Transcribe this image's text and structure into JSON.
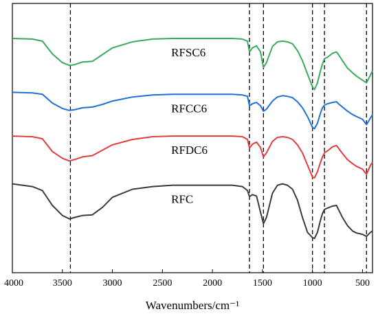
{
  "chart_data": {
    "type": "line",
    "xlabel": "Wavenumbers/cm⁻¹",
    "ylabel": "",
    "xlim": [
      4000,
      400
    ],
    "x_reversed": true,
    "y_ticks_shown": false,
    "grid": false,
    "legend": "none",
    "x_ticks": [
      4000,
      3500,
      3000,
      2500,
      2000,
      1500,
      1000,
      500
    ],
    "reference_lines_x": [
      3420,
      1630,
      1490,
      1000,
      880,
      460
    ],
    "series": [
      {
        "name": "RFSC6",
        "color": "#3aaa5c",
        "x": [
          4000,
          3800,
          3700,
          3600,
          3500,
          3430,
          3380,
          3300,
          3200,
          3100,
          3000,
          2800,
          2600,
          2400,
          2200,
          2000,
          1800,
          1700,
          1650,
          1630,
          1600,
          1560,
          1520,
          1490,
          1460,
          1400,
          1350,
          1300,
          1250,
          1200,
          1150,
          1100,
          1050,
          1000,
          980,
          950,
          920,
          900,
          880,
          850,
          800,
          760,
          740,
          700,
          650,
          600,
          560,
          500,
          460,
          420,
          400
        ],
        "y": [
          52,
          53,
          56,
          75,
          88,
          92,
          91,
          87,
          86,
          76,
          66,
          57,
          53,
          52,
          52,
          52,
          52,
          53,
          56,
          72,
          66,
          63,
          72,
          95,
          88,
          64,
          57,
          56,
          57,
          60,
          70,
          85,
          105,
          124,
          128,
          118,
          100,
          90,
          82,
          80,
          74,
          72,
          76,
          85,
          96,
          103,
          108,
          114,
          118,
          106,
          100
        ]
      },
      {
        "name": "RFCC6",
        "color": "#1f6fd6",
        "x": [
          4000,
          3800,
          3700,
          3600,
          3500,
          3430,
          3380,
          3300,
          3200,
          3100,
          3000,
          2800,
          2600,
          2400,
          2200,
          2000,
          1800,
          1700,
          1650,
          1630,
          1600,
          1560,
          1520,
          1490,
          1460,
          1400,
          1350,
          1300,
          1250,
          1200,
          1150,
          1100,
          1050,
          1000,
          980,
          950,
          920,
          900,
          880,
          850,
          800,
          760,
          740,
          700,
          650,
          600,
          560,
          500,
          460,
          420,
          400
        ],
        "y": [
          132,
          133,
          135,
          148,
          156,
          159,
          158,
          155,
          154,
          150,
          145,
          139,
          136,
          135,
          135,
          135,
          135,
          136,
          138,
          152,
          149,
          147,
          152,
          160,
          157,
          145,
          139,
          137,
          138,
          140,
          146,
          155,
          168,
          184,
          186,
          178,
          163,
          155,
          151,
          149,
          147,
          146,
          149,
          154,
          160,
          165,
          168,
          172,
          180,
          170,
          165
        ]
      },
      {
        "name": "RFDC6",
        "color": "#e03c3c",
        "x": [
          4000,
          3800,
          3700,
          3600,
          3500,
          3430,
          3380,
          3300,
          3200,
          3100,
          3000,
          2800,
          2600,
          2400,
          2200,
          2000,
          1800,
          1700,
          1650,
          1630,
          1600,
          1560,
          1520,
          1490,
          1460,
          1400,
          1350,
          1300,
          1250,
          1200,
          1150,
          1100,
          1050,
          1000,
          980,
          950,
          920,
          900,
          880,
          850,
          800,
          760,
          740,
          700,
          650,
          600,
          560,
          500,
          460,
          420,
          400
        ],
        "y": [
          197,
          198,
          201,
          220,
          230,
          234,
          232,
          228,
          226,
          218,
          210,
          202,
          198,
          197,
          197,
          197,
          197,
          198,
          202,
          215,
          209,
          206,
          214,
          228,
          222,
          205,
          199,
          198,
          199,
          202,
          210,
          222,
          240,
          258,
          259,
          250,
          236,
          228,
          222,
          219,
          213,
          211,
          215,
          223,
          232,
          238,
          242,
          246,
          254,
          240,
          236
        ]
      },
      {
        "name": "RFC",
        "color": "#3a3a3a",
        "x": [
          4000,
          3800,
          3700,
          3600,
          3500,
          3430,
          3380,
          3300,
          3200,
          3100,
          3000,
          2800,
          2600,
          2400,
          2200,
          2000,
          1800,
          1700,
          1650,
          1630,
          1600,
          1560,
          1520,
          1490,
          1460,
          1400,
          1350,
          1300,
          1250,
          1200,
          1150,
          1100,
          1050,
          1000,
          980,
          950,
          920,
          900,
          880,
          850,
          800,
          760,
          740,
          700,
          650,
          600,
          560,
          500,
          460,
          420,
          400
        ],
        "y": [
          268,
          272,
          278,
          300,
          315,
          320,
          318,
          315,
          314,
          303,
          288,
          276,
          272,
          270,
          270,
          270,
          270,
          272,
          278,
          287,
          284,
          286,
          310,
          327,
          318,
          282,
          270,
          268,
          270,
          276,
          292,
          318,
          340,
          348,
          349,
          340,
          322,
          312,
          306,
          304,
          301,
          300,
          306,
          318,
          330,
          338,
          341,
          343,
          346,
          340,
          338
        ]
      }
    ],
    "labels": [
      {
        "text": "RFSC6",
        "series": "RFSC6"
      },
      {
        "text": "RFCC6",
        "series": "RFCC6"
      },
      {
        "text": "RFDC6",
        "series": "RFDC6"
      },
      {
        "text": "RFC",
        "series": "RFC"
      }
    ]
  }
}
